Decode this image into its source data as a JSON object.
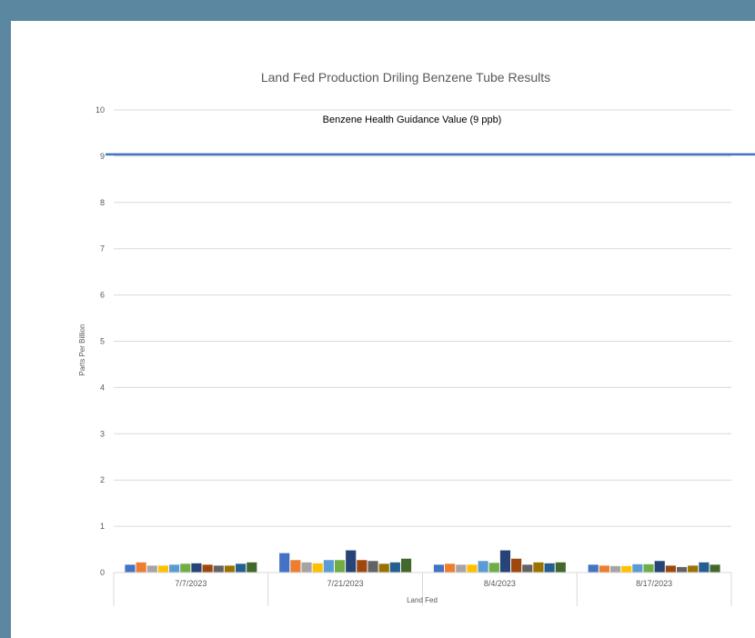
{
  "chart_data": {
    "type": "bar",
    "title": "Land Fed Production Driling Benzene Tube Results",
    "xlabel": "Land Fed",
    "ylabel": "Parts Per Billion",
    "ylim": [
      0,
      10
    ],
    "yticks": [
      0,
      1,
      2,
      3,
      4,
      5,
      6,
      7,
      8,
      9,
      10
    ],
    "grid": true,
    "legend": "none",
    "categories": [
      "7/7/2023",
      "7/21/2023",
      "8/4/2023",
      "8/17/2023"
    ],
    "series_colors": [
      "#4472c4",
      "#ed7d31",
      "#a5a5a5",
      "#ffc000",
      "#5b9bd5",
      "#70ad47",
      "#264478",
      "#9e480e",
      "#636363",
      "#997300",
      "#255e91",
      "#43682b"
    ],
    "series": [
      {
        "values": [
          0.17,
          0.42,
          0.17,
          0.17
        ]
      },
      {
        "values": [
          0.22,
          0.27,
          0.19,
          0.15
        ]
      },
      {
        "values": [
          0.15,
          0.22,
          0.17,
          0.14
        ]
      },
      {
        "values": [
          0.15,
          0.2,
          0.17,
          0.14
        ]
      },
      {
        "values": [
          0.17,
          0.27,
          0.25,
          0.18
        ]
      },
      {
        "values": [
          0.19,
          0.27,
          0.21,
          0.18
        ]
      },
      {
        "values": [
          0.2,
          0.48,
          0.48,
          0.25
        ]
      },
      {
        "values": [
          0.17,
          0.27,
          0.3,
          0.15
        ]
      },
      {
        "values": [
          0.15,
          0.25,
          0.17,
          0.12
        ]
      },
      {
        "values": [
          0.15,
          0.19,
          0.22,
          0.15
        ]
      },
      {
        "values": [
          0.19,
          0.22,
          0.2,
          0.22
        ]
      },
      {
        "values": [
          0.22,
          0.3,
          0.22,
          0.17
        ]
      }
    ],
    "reference_line": {
      "label": "Benzene Health Guidance Value (9 ppb)",
      "value": 9,
      "color": "#4472c4"
    }
  }
}
